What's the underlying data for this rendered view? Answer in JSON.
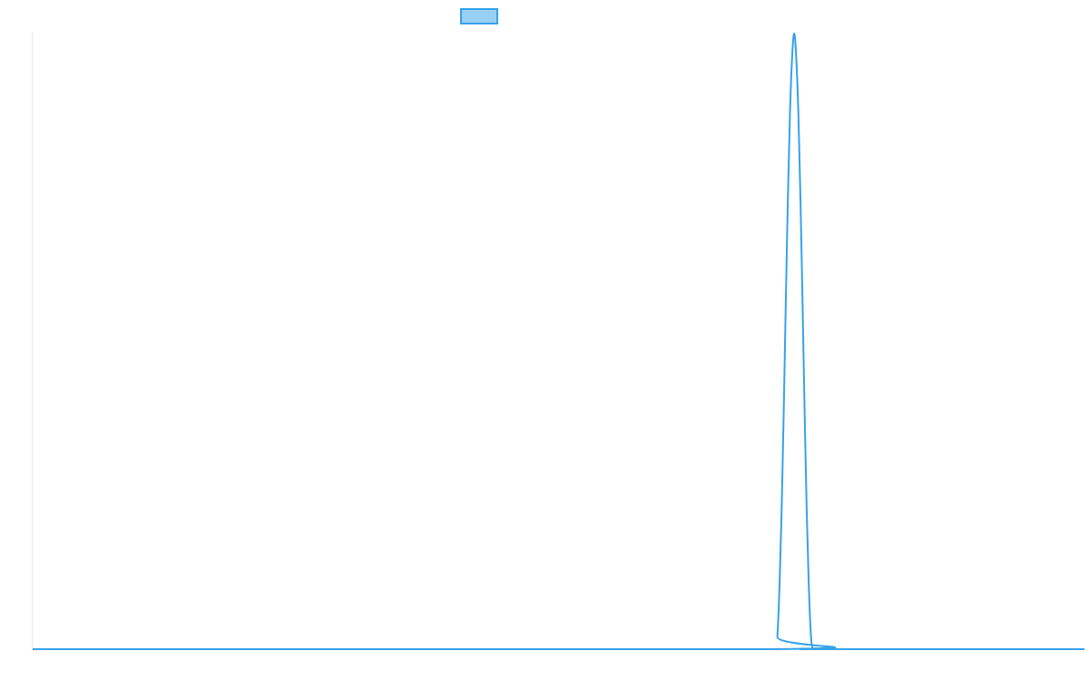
{
  "chart_data": {
    "type": "line",
    "title": "",
    "xlabel": "",
    "ylabel": "",
    "legend": {
      "placement": "top-center"
    },
    "grid": false,
    "axis_color": "#e5e5e5",
    "series": [
      {
        "color": "#36a2eb",
        "fill_color": "#9ad0f5",
        "x": [
          0,
          706,
          708,
          710,
          712,
          714,
          716,
          718,
          720,
          722,
          724,
          726,
          728,
          730,
          732,
          734,
          736,
          738,
          740,
          742,
          744,
          746,
          748,
          750,
          1000
        ],
        "values": [
          0,
          0,
          0.02,
          0.1,
          0.22,
          0.38,
          0.56,
          0.73,
          0.87,
          0.96,
          1.0,
          0.96,
          0.87,
          0.73,
          0.56,
          0.38,
          0.22,
          0.1,
          0.02,
          0,
          0,
          0,
          0,
          0,
          0
        ]
      }
    ],
    "xlim": [
      0,
      1000
    ],
    "ylim": [
      0,
      1
    ]
  }
}
